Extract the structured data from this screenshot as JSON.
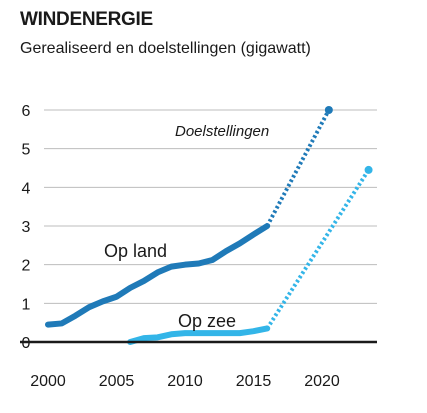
{
  "chart_data": {
    "type": "line",
    "title": "WINDENERGIE",
    "subtitle": "Gerealiseerd en doelstellingen (gigawatt)",
    "xlabel": "",
    "ylabel": "",
    "xlim": [
      2000,
      2024
    ],
    "ylim": [
      0,
      6
    ],
    "x_ticks": [
      2000,
      2005,
      2010,
      2015,
      2020
    ],
    "y_ticks": [
      0,
      1,
      2,
      3,
      4,
      5,
      6
    ],
    "grid": "horizontal",
    "annotation": "Doelstellingen",
    "colors": {
      "op_land": "#1f7ab8",
      "op_zee": "#33b5e8",
      "axis": "#1a1a1a",
      "grid": "#bdbdbd"
    },
    "series": [
      {
        "name": "Op land",
        "realised": {
          "x": [
            2000,
            2001,
            2002,
            2003,
            2004,
            2005,
            2006,
            2007,
            2008,
            2009,
            2010,
            2011,
            2012,
            2013,
            2014,
            2015,
            2016
          ],
          "y": [
            0.45,
            0.48,
            0.68,
            0.9,
            1.05,
            1.17,
            1.4,
            1.58,
            1.8,
            1.95,
            2.0,
            2.03,
            2.12,
            2.35,
            2.55,
            2.78,
            3.0
          ]
        },
        "target": {
          "x": [
            2016,
            2020.5
          ],
          "y": [
            3.0,
            6.0
          ]
        }
      },
      {
        "name": "Op zee",
        "realised": {
          "x": [
            2006,
            2007,
            2008,
            2009,
            2010,
            2011,
            2012,
            2013,
            2014,
            2015,
            2016
          ],
          "y": [
            0.0,
            0.1,
            0.12,
            0.2,
            0.23,
            0.23,
            0.23,
            0.23,
            0.23,
            0.28,
            0.35
          ]
        },
        "target": {
          "x": [
            2016,
            2023.4
          ],
          "y": [
            0.35,
            4.45
          ]
        }
      }
    ]
  }
}
